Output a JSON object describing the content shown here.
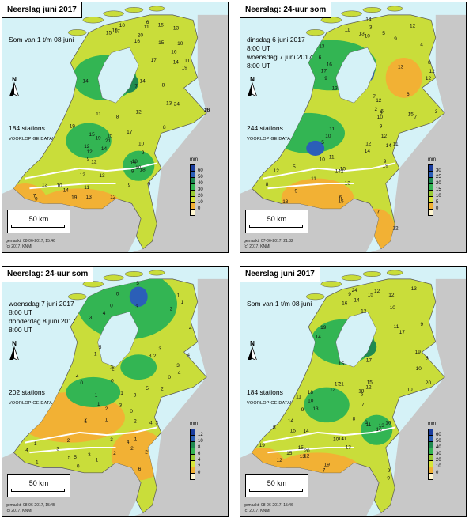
{
  "panels": [
    {
      "title": "Neerslag juni 2017",
      "info_lines": [
        "Som van 1 t/m 08 juni"
      ],
      "stations": "184 stations",
      "voorlopig": "VOORLOPIGE DATA!",
      "north": "N",
      "scale": "50 km",
      "legend_unit": "mm",
      "legend_ticks": [
        "60",
        "50",
        "40",
        "30",
        "20",
        "10",
        "0"
      ],
      "credit_lines": [
        "gemaakt: 08-06-2017, 15:46",
        "(c) 2017, KNMI"
      ],
      "palette": [
        "#1a3d9e",
        "#2b5fb8",
        "#1f8a50",
        "#33b553",
        "#99cc33",
        "#d6e63a",
        "#f2b134",
        "#fff6d0"
      ]
    },
    {
      "title": "Neerslag: 24-uur som",
      "info_lines": [
        "dinsdag 6 juni 2017",
        "8:00 UT",
        "woensdag 7 juni 2017",
        "8:00 UT"
      ],
      "stations": "244 stations",
      "voorlopig": "VOORLOPIGE DATA",
      "north": "N",
      "scale": "50 km",
      "legend_unit": "mm",
      "legend_ticks": [
        "30",
        "25",
        "20",
        "15",
        "10",
        "5",
        "0"
      ],
      "credit_lines": [
        "gemaakt: 07-06-2017, 21:32",
        "(c) 2017, KNMI"
      ],
      "palette": [
        "#1a3d9e",
        "#2b5fb8",
        "#1f8a50",
        "#33b553",
        "#99cc33",
        "#d6e63a",
        "#f2b134",
        "#fff6d0"
      ]
    },
    {
      "title": "Neerslag: 24-uur som",
      "info_lines": [
        "woensdag 7 juni 2017",
        "8:00 UT",
        "donderdag 8 juni 2017",
        "8:00 UT"
      ],
      "stations": "202 stations",
      "voorlopig": "VOORLOPIGE DATA",
      "north": "N",
      "scale": "50 km",
      "legend_unit": "mm",
      "legend_ticks": [
        "12",
        "10",
        "8",
        "6",
        "4",
        "2",
        "0"
      ],
      "credit_lines": [
        "gemaakt: 08-06-2017, 15:45",
        "(c) 2017, KNMI"
      ],
      "palette": [
        "#1a3d9e",
        "#2b5fb8",
        "#1f8a50",
        "#33b553",
        "#99cc33",
        "#d6e63a",
        "#f2b134",
        "#fff6d0"
      ]
    },
    {
      "title": "Neerslag juni 2017",
      "info_lines": [
        "Som van 1 t/m 08 juni"
      ],
      "stations": "184 stations",
      "voorlopig": "VOORLOPIGE DATA!",
      "north": "N",
      "scale": "50 km",
      "legend_unit": "mm",
      "legend_ticks": [
        "60",
        "50",
        "40",
        "30",
        "20",
        "10",
        "0"
      ],
      "credit_lines": [
        "gemaakt: 08-06-2017, 15:46",
        "(c) 2017, KNMI"
      ],
      "palette": [
        "#1a3d9e",
        "#2b5fb8",
        "#1f8a50",
        "#33b553",
        "#99cc33",
        "#d6e63a",
        "#f2b134",
        "#fff6d0"
      ]
    }
  ],
  "station_labels": [
    [
      "15",
      "21",
      "19",
      "24",
      "17",
      "16",
      "19",
      "12",
      "13",
      "19",
      "20",
      "14",
      "15",
      "11",
      "17",
      "12",
      "14",
      "19",
      "13",
      "18",
      "16",
      "15",
      "14",
      "16",
      "12",
      "13",
      "15",
      "9",
      "11",
      "10",
      "9",
      "8",
      "17",
      "20",
      "18",
      "15",
      "14",
      "13",
      "10",
      "12",
      "9",
      "8",
      "7",
      "12",
      "11",
      "10",
      "9",
      "15",
      "13",
      "12",
      "11",
      "10",
      "9",
      "8",
      "7",
      "6",
      "9",
      "10",
      "14",
      "12"
    ],
    [
      "16",
      "17",
      "13",
      "14",
      "12",
      "10",
      "11",
      "12",
      "13",
      "19",
      "14",
      "14",
      "12",
      "13",
      "9",
      "9",
      "11",
      "12",
      "13",
      "10",
      "8",
      "7",
      "6",
      "13",
      "11",
      "9",
      "10",
      "12",
      "11",
      "15",
      "14",
      "12",
      "7",
      "9",
      "6",
      "8",
      "5",
      "3",
      "4",
      "5",
      "6",
      "13",
      "12",
      "2",
      "2",
      "11",
      "10",
      "9",
      "3",
      "5",
      "8",
      "7",
      "6",
      "15",
      "12",
      "10"
    ],
    [
      "5",
      "4",
      "3",
      "3",
      "4",
      "5",
      "3",
      "6",
      "4",
      "4",
      "5",
      "3",
      "2",
      "2",
      "3",
      "2",
      "4",
      "5",
      "3",
      "2",
      "1",
      "0",
      "1",
      "1",
      "1",
      "2",
      "3",
      "3",
      "4",
      "2",
      "1",
      "0",
      "1",
      "1",
      "0",
      "1",
      "0",
      "2",
      "3",
      "0",
      "0",
      "0",
      "1",
      "1",
      "4",
      "1",
      "2",
      "3",
      "2",
      "2",
      "1",
      "3",
      "4",
      "5",
      "3",
      "2"
    ],
    [
      "15",
      "21",
      "19",
      "24",
      "17",
      "16",
      "19",
      "12",
      "13",
      "19",
      "20",
      "14",
      "15",
      "11",
      "17",
      "12",
      "14",
      "19",
      "13",
      "18",
      "16",
      "15",
      "14",
      "16",
      "12",
      "13",
      "15",
      "9",
      "11",
      "10",
      "9",
      "8",
      "17",
      "20",
      "18",
      "15",
      "14",
      "13",
      "10",
      "12",
      "9",
      "8",
      "7",
      "12",
      "11",
      "10",
      "9",
      "15",
      "13",
      "12",
      "11",
      "10",
      "9",
      "8",
      "7",
      "6",
      "9",
      "10",
      "14",
      "12"
    ]
  ],
  "regions": {
    "panel0": [
      [
        0.45,
        0.3,
        0.14,
        0.09,
        "#33b553"
      ],
      [
        0.55,
        0.32,
        0.05,
        0.04,
        "#1f8a50"
      ],
      [
        0.38,
        0.55,
        0.1,
        0.07,
        "#33b553"
      ],
      [
        0.34,
        0.82,
        0.2,
        0.08,
        "#f2b134"
      ],
      [
        0.1,
        0.8,
        0.1,
        0.08,
        "#f2b134"
      ],
      [
        0.6,
        0.65,
        0.07,
        0.06,
        "#33b553"
      ]
    ],
    "panel1": [
      [
        0.4,
        0.25,
        0.2,
        0.1,
        "#33b553"
      ],
      [
        0.55,
        0.28,
        0.04,
        0.04,
        "#2b5fb8"
      ],
      [
        0.3,
        0.52,
        0.16,
        0.08,
        "#33b553"
      ],
      [
        0.33,
        0.58,
        0.04,
        0.03,
        "#2b5fb8"
      ],
      [
        0.34,
        0.78,
        0.16,
        0.08,
        "#f2b134"
      ],
      [
        0.6,
        0.9,
        0.08,
        0.08,
        "#f2b134"
      ],
      [
        0.72,
        0.3,
        0.08,
        0.08,
        "#f2b134"
      ]
    ],
    "panel2": [
      [
        0.55,
        0.15,
        0.22,
        0.14,
        "#33b553"
      ],
      [
        0.6,
        0.12,
        0.04,
        0.04,
        "#2b5fb8"
      ],
      [
        0.3,
        0.6,
        0.24,
        0.1,
        "#f2b134"
      ],
      [
        0.6,
        0.75,
        0.12,
        0.1,
        "#f2b134"
      ],
      [
        0.4,
        0.5,
        0.12,
        0.06,
        "#33b553"
      ],
      [
        0.6,
        0.4,
        0.08,
        0.05,
        "#33b553"
      ]
    ],
    "panel3": [
      [
        0.45,
        0.3,
        0.14,
        0.09,
        "#33b553"
      ],
      [
        0.55,
        0.32,
        0.05,
        0.04,
        "#1f8a50"
      ],
      [
        0.38,
        0.55,
        0.1,
        0.07,
        "#33b553"
      ],
      [
        0.34,
        0.82,
        0.2,
        0.08,
        "#f2b134"
      ],
      [
        0.1,
        0.8,
        0.1,
        0.08,
        "#f2b134"
      ],
      [
        0.6,
        0.65,
        0.07,
        0.06,
        "#33b553"
      ]
    ]
  }
}
